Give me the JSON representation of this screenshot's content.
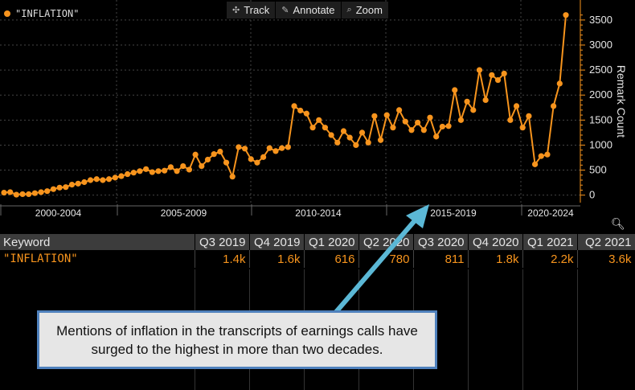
{
  "legend": {
    "label": "\"INFLATION\"",
    "color": "#f7941d"
  },
  "toolbar": {
    "track": "Track",
    "annotate": "Annotate",
    "zoom": "Zoom"
  },
  "zoom_corner_icon": "zoom-plus-icon",
  "chart_data": {
    "type": "line",
    "series": [
      {
        "name": "\"INFLATION\"",
        "color": "#f7941d",
        "values": [
          50,
          60,
          10,
          20,
          20,
          40,
          60,
          80,
          120,
          150,
          160,
          210,
          230,
          260,
          300,
          320,
          300,
          320,
          350,
          380,
          420,
          450,
          480,
          520,
          460,
          480,
          490,
          560,
          480,
          580,
          510,
          810,
          580,
          710,
          820,
          870,
          650,
          370,
          960,
          930,
          720,
          650,
          760,
          940,
          880,
          940,
          960,
          1780,
          1690,
          1630,
          1350,
          1500,
          1350,
          1200,
          1050,
          1280,
          1150,
          1000,
          1250,
          1050,
          1580,
          1100,
          1600,
          1350,
          1700,
          1470,
          1300,
          1450,
          1300,
          1550,
          1170,
          1370,
          1380,
          2100,
          1500,
          1870,
          1700,
          2500,
          1900,
          2400,
          2300,
          2430,
          1500,
          1780,
          1350,
          1580,
          616,
          780,
          811,
          1780,
          2230,
          3600
        ]
      }
    ],
    "x_labels": [
      "2000-2004",
      "2005-2009",
      "2010-2014",
      "2015-2019",
      "2020-2024"
    ],
    "ylabel": "Remark Count",
    "y_ticks": [
      0,
      500,
      1000,
      1500,
      2000,
      2500,
      3000,
      3500
    ],
    "ylim": [
      -150,
      3900
    ],
    "grid": true
  },
  "table": {
    "headers": [
      "Keyword",
      "Q3 2019",
      "Q4 2019",
      "Q1 2020",
      "Q2 2020",
      "Q3 2020",
      "Q4 2020",
      "Q1 2021",
      "Q2 2021"
    ],
    "row": {
      "keyword": "\"INFLATION\"",
      "values": [
        "1.4k",
        "1.6k",
        "616",
        "780",
        "811",
        "1.8k",
        "2.2k",
        "3.6k"
      ]
    }
  },
  "annotation": {
    "text": "Mentions of inflation in the transcripts of earnings calls have surged to the highest in more than two decades.",
    "border_color": "#4f81bd",
    "arrow_color": "#5bb8d6"
  }
}
